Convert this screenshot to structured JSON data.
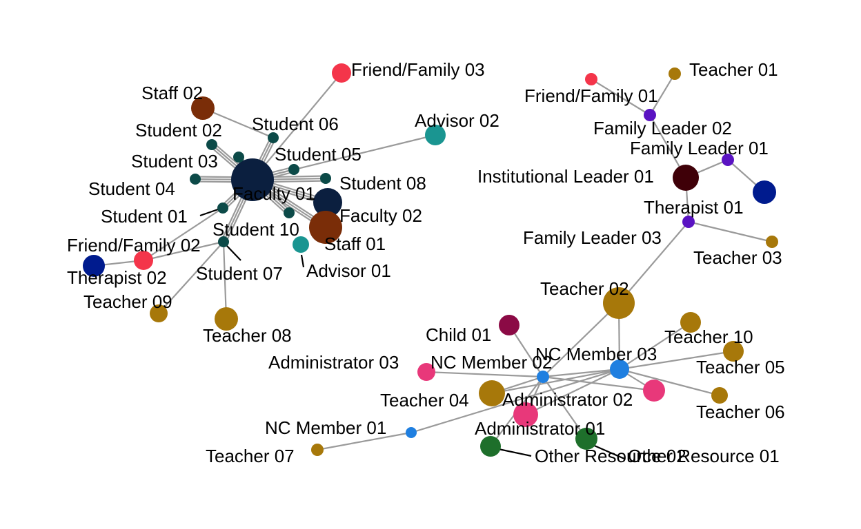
{
  "colors": {
    "student": "#0c4a48",
    "faculty": "#0b1f3f",
    "staff": "#7a2d08",
    "advisor": "#1a9591",
    "friend_family": "#f4354a",
    "therapist": "#001b8e",
    "teacher": "#a7780a",
    "family_leader": "#5a13c2",
    "institutional_leader": "#3f0008",
    "nc_member": "#1f7fe0",
    "administrator": "#e8387a",
    "child": "#8b0a45",
    "other_resource": "#1e6f2b",
    "edge": "#9a9a9a"
  },
  "nodes": [
    {
      "id": "faculty01",
      "label": "Faculty 01",
      "group": "faculty"
    },
    {
      "id": "faculty02",
      "label": "Faculty 02",
      "group": "faculty"
    },
    {
      "id": "staff01",
      "label": "Staff 01",
      "group": "staff"
    },
    {
      "id": "staff02",
      "label": "Staff 02",
      "group": "staff"
    },
    {
      "id": "student01",
      "label": "Student 01",
      "group": "student"
    },
    {
      "id": "student02",
      "label": "Student 02",
      "group": "student"
    },
    {
      "id": "student03",
      "label": "Student 03",
      "group": "student"
    },
    {
      "id": "student04",
      "label": "Student 04",
      "group": "student"
    },
    {
      "id": "student05",
      "label": "Student 05",
      "group": "student"
    },
    {
      "id": "student06",
      "label": "Student 06",
      "group": "student"
    },
    {
      "id": "student07",
      "label": "Student 07",
      "group": "student"
    },
    {
      "id": "student08",
      "label": "Student 08",
      "group": "student"
    },
    {
      "id": "student10",
      "label": "Student 10",
      "group": "student"
    },
    {
      "id": "advisor01",
      "label": "Advisor 01",
      "group": "advisor"
    },
    {
      "id": "advisor02",
      "label": "Advisor 02",
      "group": "advisor"
    },
    {
      "id": "friendfamily02",
      "label": "Friend/Family 02",
      "group": "friend_family"
    },
    {
      "id": "friendfamily03",
      "label": "Friend/Family 03",
      "group": "friend_family"
    },
    {
      "id": "therapist02",
      "label": "Therapist 02",
      "group": "therapist"
    },
    {
      "id": "teacher08",
      "label": "Teacher 08",
      "group": "teacher"
    },
    {
      "id": "teacher09",
      "label": "Teacher 09",
      "group": "teacher"
    },
    {
      "id": "friendfamily01",
      "label": "Friend/Family 01",
      "group": "friend_family"
    },
    {
      "id": "teacher01",
      "label": "Teacher 01",
      "group": "teacher"
    },
    {
      "id": "familyleader02",
      "label": "Family Leader 02",
      "group": "family_leader"
    },
    {
      "id": "familyleader01",
      "label": "Family Leader 01",
      "group": "family_leader"
    },
    {
      "id": "institutionalleader01",
      "label": "Institutional Leader 01",
      "group": "institutional_leader"
    },
    {
      "id": "therapist01",
      "label": "Therapist 01",
      "group": "therapist"
    },
    {
      "id": "familyleader03",
      "label": "Family Leader 03",
      "group": "family_leader"
    },
    {
      "id": "teacher03",
      "label": "Teacher 03",
      "group": "teacher"
    },
    {
      "id": "teacher02",
      "label": "Teacher 02",
      "group": "teacher"
    },
    {
      "id": "child01",
      "label": "Child 01",
      "group": "child"
    },
    {
      "id": "teacher10",
      "label": "Teacher 10",
      "group": "teacher"
    },
    {
      "id": "teacher05",
      "label": "Teacher 05",
      "group": "teacher"
    },
    {
      "id": "ncmember03",
      "label": "NC Member 03",
      "group": "nc_member"
    },
    {
      "id": "ncmember02",
      "label": "NC Member 02",
      "group": "nc_member"
    },
    {
      "id": "administrator03",
      "label": "Administrator 03",
      "group": "administrator"
    },
    {
      "id": "teacher04",
      "label": "Teacher 04",
      "group": "teacher"
    },
    {
      "id": "administrator02",
      "label": "Administrator 02",
      "group": "administrator"
    },
    {
      "id": "teacher06",
      "label": "Teacher 06",
      "group": "teacher"
    },
    {
      "id": "ncmember01",
      "label": "NC Member 01",
      "group": "nc_member"
    },
    {
      "id": "administrator01",
      "label": "Administrator 01",
      "group": "administrator"
    },
    {
      "id": "teacher07",
      "label": "Teacher 07",
      "group": "teacher"
    },
    {
      "id": "otherresource01",
      "label": "Other Resource 01",
      "group": "other_resource"
    },
    {
      "id": "otherresource02",
      "label": "Other Resource 02",
      "group": "other_resource"
    }
  ],
  "edges": [
    [
      "friendfamily03",
      "faculty01"
    ],
    [
      "staff02",
      "student06"
    ],
    [
      "advisor02",
      "faculty01"
    ],
    [
      "student02",
      "faculty01"
    ],
    [
      "student03",
      "faculty01"
    ],
    [
      "student04",
      "faculty01"
    ],
    [
      "student05",
      "faculty01"
    ],
    [
      "student06",
      "faculty01"
    ],
    [
      "student08",
      "faculty01"
    ],
    [
      "student01",
      "faculty01"
    ],
    [
      "student10",
      "faculty01"
    ],
    [
      "student07",
      "faculty01"
    ],
    [
      "faculty02",
      "faculty01"
    ],
    [
      "staff01",
      "faculty01"
    ],
    [
      "friendfamily02",
      "student07"
    ],
    [
      "therapist02",
      "friendfamily02"
    ],
    [
      "teacher09",
      "student07"
    ],
    [
      "teacher08",
      "student07"
    ],
    [
      "friendfamily02",
      "student01"
    ],
    [
      "friendfamily01",
      "familyleader02"
    ],
    [
      "teacher01",
      "familyleader02"
    ],
    [
      "familyleader02",
      "institutionalleader01"
    ],
    [
      "familyleader01",
      "institutionalleader01"
    ],
    [
      "familyleader01",
      "therapist01"
    ],
    [
      "institutionalleader01",
      "familyleader03"
    ],
    [
      "familyleader03",
      "teacher03"
    ],
    [
      "familyleader03",
      "teacher02"
    ],
    [
      "teacher02",
      "ncmember03"
    ],
    [
      "teacher02",
      "ncmember02"
    ],
    [
      "child01",
      "ncmember02"
    ],
    [
      "ncmember02",
      "ncmember03"
    ],
    [
      "administrator03",
      "ncmember02"
    ],
    [
      "teacher04",
      "ncmember02"
    ],
    [
      "teacher04",
      "ncmember03"
    ],
    [
      "administrator02",
      "ncmember02"
    ],
    [
      "administrator02",
      "ncmember03"
    ],
    [
      "ncmember01",
      "ncmember03"
    ],
    [
      "teacher07",
      "ncmember01"
    ],
    [
      "administrator01",
      "ncmember02"
    ],
    [
      "otherresource01",
      "ncmember02"
    ],
    [
      "ncmember03",
      "teacher10"
    ],
    [
      "ncmember03",
      "teacher05"
    ],
    [
      "ncmember03",
      "teacher06"
    ],
    [
      "ncmember03",
      "administrator01"
    ],
    [
      "otherresource02",
      "ncmember02"
    ]
  ]
}
